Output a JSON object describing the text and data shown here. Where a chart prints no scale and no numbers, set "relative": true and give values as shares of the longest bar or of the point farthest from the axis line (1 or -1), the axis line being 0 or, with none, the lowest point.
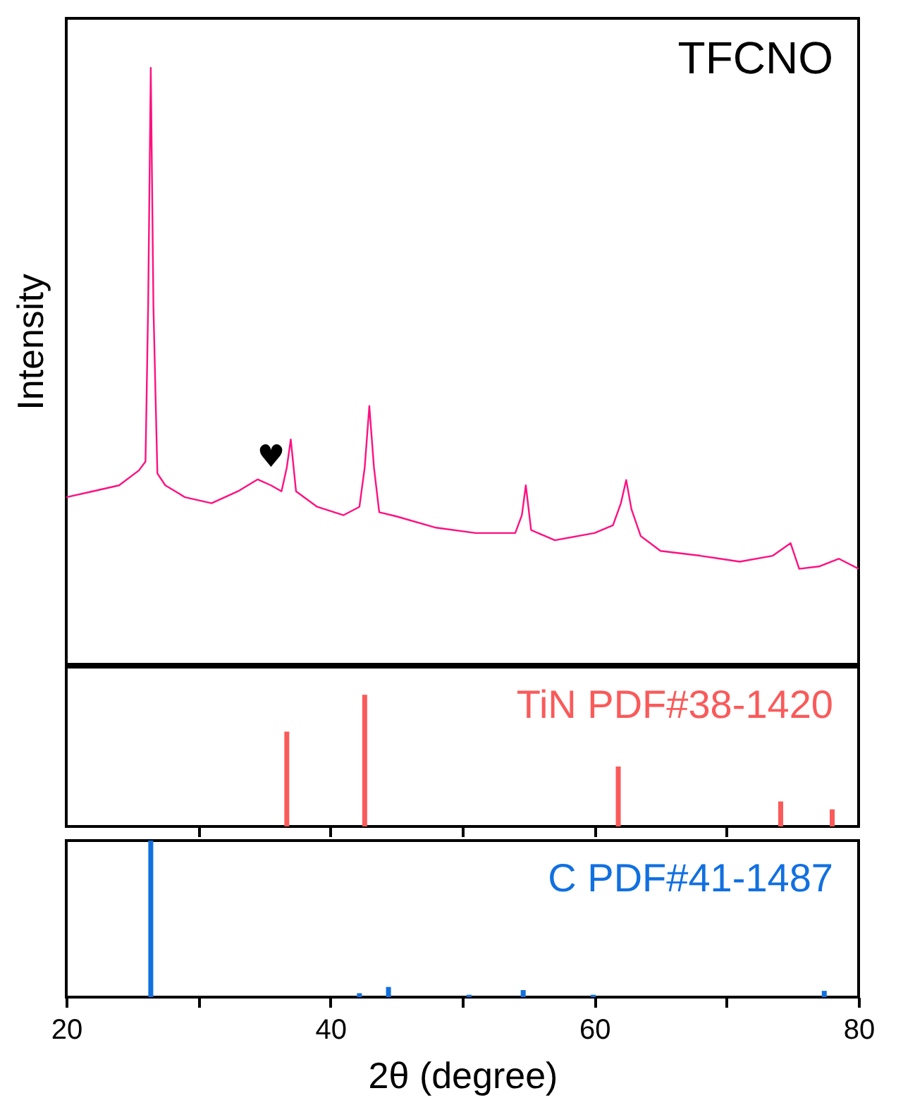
{
  "chart_data": [
    {
      "type": "line",
      "ylabel": "Intensity",
      "relative": true,
      "xlim": [
        20,
        80
      ],
      "tick_labels": false,
      "grid": false,
      "series": [
        {
          "color": "#ff1080",
          "x": [
            20,
            22,
            24,
            25.5,
            26.0,
            26.2,
            26.4,
            26.6,
            26.9,
            27.5,
            29,
            31,
            33,
            34.5,
            35.5,
            36.3,
            36.7,
            37.0,
            37.4,
            39,
            41,
            42.2,
            42.6,
            42.95,
            43.3,
            43.7,
            45,
            48,
            51,
            54,
            54.5,
            54.8,
            55.2,
            57,
            60,
            61.4,
            62.0,
            62.4,
            62.8,
            63.5,
            65,
            68,
            71,
            73.5,
            74.85,
            75.5,
            77,
            78.5,
            80
          ],
          "values": [
            0.28,
            0.29,
            0.3,
            0.325,
            0.34,
            0.6,
            1.0,
            0.6,
            0.32,
            0.3,
            0.28,
            0.27,
            0.29,
            0.31,
            0.3,
            0.29,
            0.33,
            0.377,
            0.29,
            0.264,
            0.25,
            0.264,
            0.33,
            0.433,
            0.33,
            0.255,
            0.248,
            0.229,
            0.22,
            0.22,
            0.25,
            0.3,
            0.225,
            0.208,
            0.22,
            0.233,
            0.27,
            0.309,
            0.26,
            0.215,
            0.19,
            0.182,
            0.172,
            0.182,
            0.203,
            0.16,
            0.164,
            0.177,
            0.16
          ]
        }
      ],
      "annotations": [
        "TFCNO",
        {
          "text": "♥",
          "x": 35.5,
          "y": 0.3
        }
      ]
    },
    {
      "type": "bar",
      "relative": true,
      "xlim": [
        20,
        80
      ],
      "xticks": [
        {
          "value": 30,
          "label": null
        },
        {
          "value": 40,
          "label": null
        },
        {
          "value": 50,
          "label": null
        },
        {
          "value": 60,
          "label": null
        },
        {
          "value": 70,
          "label": null
        }
      ],
      "tick_labels": false,
      "grid": false,
      "series": [
        {
          "name": "TiN PDF#38-1420",
          "color": "#fa5a5a",
          "x": [
            36.7,
            42.6,
            61.8,
            74.1,
            78.0
          ],
          "values": [
            0.72,
            1.0,
            0.455,
            0.19,
            0.13
          ]
        }
      ]
    },
    {
      "type": "bar",
      "relative": true,
      "xlabel": "2θ (degree)",
      "xlim": [
        20,
        80
      ],
      "xticks": [
        20,
        {
          "value": 30,
          "label": null
        },
        40,
        {
          "value": 50,
          "label": null
        },
        60,
        {
          "value": 70,
          "label": null
        },
        80
      ],
      "tick_labels": "x",
      "grid": false,
      "series": [
        {
          "name": "C PDF#41-1487",
          "color": "#1170e0",
          "x": [
            26.4,
            42.2,
            44.4,
            50.5,
            54.6,
            59.9,
            77.4
          ],
          "values": [
            1.0,
            0.025,
            0.065,
            0.015,
            0.045,
            0.015,
            0.04
          ]
        }
      ]
    }
  ]
}
